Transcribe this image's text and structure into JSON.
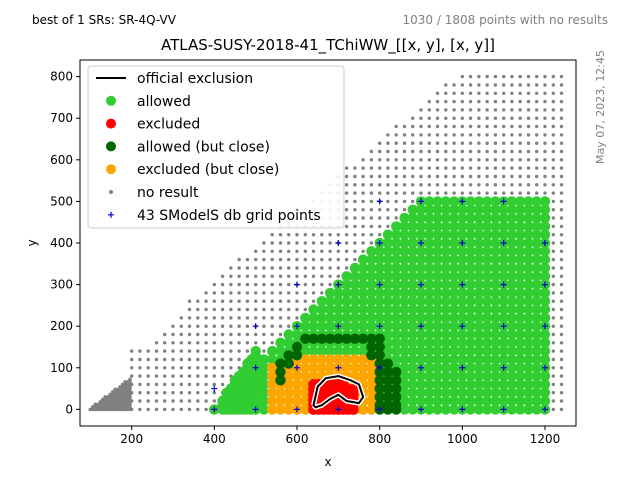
{
  "header": {
    "left_note": "best of 1 SRs: SR-4Q-VV",
    "right_note": "1030 / 1808 points with no results",
    "side_note": "May 07, 2023, 12:45"
  },
  "chart_data": {
    "type": "scatter",
    "title": "ATLAS-SUSY-2018-41_TChiWW_[[x, y], [x, y]]",
    "xlabel": "x",
    "ylabel": "y",
    "xlim": [
      75,
      1275
    ],
    "ylim": [
      -40,
      840
    ],
    "xticks": [
      200,
      400,
      600,
      800,
      1000,
      1200
    ],
    "yticks": [
      0,
      100,
      200,
      300,
      400,
      500,
      600,
      700,
      800
    ],
    "grid": false,
    "legend_position": "top-left",
    "legend": [
      {
        "label": "official exclusion",
        "marker": "line",
        "color": "#000000"
      },
      {
        "label": "allowed",
        "marker": "dot",
        "color": "#32cd32"
      },
      {
        "label": "excluded",
        "marker": "dot",
        "color": "#ff0000"
      },
      {
        "label": "allowed (but close)",
        "marker": "dot",
        "color": "#006400"
      },
      {
        "label": "excluded (but close)",
        "marker": "dot",
        "color": "#ffa500"
      },
      {
        "label": "no result",
        "marker": "small-dot",
        "color": "#808080"
      },
      {
        "label": "43 SModelS db grid points",
        "marker": "plus",
        "color": "#0000cd"
      }
    ],
    "series": [
      {
        "name": "allowed",
        "color": "#32cd32",
        "regions": [
          {
            "x": [
              420,
              1200
            ],
            "y": [
              0,
              500
            ],
            "upper_edge": "y <= x - 400"
          },
          {
            "x": [
              400,
              420
            ],
            "y": [
              0,
              20
            ]
          }
        ]
      },
      {
        "name": "allowed (but close)",
        "color": "#006400",
        "points": [
          [
            600,
            150
          ],
          [
            620,
            170
          ],
          [
            640,
            170
          ],
          [
            660,
            170
          ],
          [
            680,
            170
          ],
          [
            700,
            170
          ],
          [
            720,
            170
          ],
          [
            740,
            170
          ],
          [
            760,
            170
          ],
          [
            780,
            170
          ],
          [
            800,
            170
          ],
          [
            780,
            150
          ],
          [
            800,
            150
          ],
          [
            780,
            130
          ],
          [
            800,
            130
          ],
          [
            580,
            130
          ],
          [
            600,
            130
          ],
          [
            560,
            110
          ],
          [
            580,
            110
          ],
          [
            560,
            90
          ],
          [
            560,
            70
          ],
          [
            800,
            110
          ],
          [
            820,
            110
          ],
          [
            800,
            90
          ],
          [
            820,
            90
          ],
          [
            840,
            90
          ],
          [
            800,
            70
          ],
          [
            820,
            70
          ],
          [
            840,
            70
          ],
          [
            800,
            50
          ],
          [
            820,
            50
          ],
          [
            840,
            50
          ],
          [
            800,
            30
          ],
          [
            820,
            30
          ],
          [
            840,
            30
          ],
          [
            800,
            10
          ],
          [
            820,
            10
          ],
          [
            840,
            10
          ],
          [
            800,
            0
          ],
          [
            820,
            0
          ],
          [
            840,
            0
          ]
        ]
      },
      {
        "name": "excluded (but close)",
        "color": "#ffa500",
        "region": {
          "x": [
            540,
            780
          ],
          "y": [
            0,
            130
          ]
        }
      },
      {
        "name": "excluded",
        "color": "#ff0000",
        "region": {
          "x": [
            640,
            740
          ],
          "y": [
            0,
            70
          ]
        }
      },
      {
        "name": "no result",
        "color": "#808080",
        "regions": [
          {
            "x": [
              100,
              200
            ],
            "y": [
              0,
              140
            ],
            "note": "dense cluster"
          },
          {
            "x": [
              200,
              1240
            ],
            "y": [
              0,
              800
            ],
            "lower_edge": "y > x - 400 beyond results",
            "spacing": 20
          }
        ]
      },
      {
        "name": "43 SModelS db grid points",
        "color": "#0000cd",
        "points": [
          [
            400,
            0
          ],
          [
            500,
            0
          ],
          [
            600,
            0
          ],
          [
            700,
            0
          ],
          [
            800,
            0
          ],
          [
            900,
            0
          ],
          [
            1000,
            0
          ],
          [
            1100,
            0
          ],
          [
            1200,
            0
          ],
          [
            400,
            50
          ],
          [
            500,
            100
          ],
          [
            600,
            100
          ],
          [
            700,
            100
          ],
          [
            800,
            100
          ],
          [
            900,
            100
          ],
          [
            1000,
            100
          ],
          [
            1100,
            100
          ],
          [
            1200,
            100
          ],
          [
            500,
            200
          ],
          [
            600,
            200
          ],
          [
            700,
            200
          ],
          [
            800,
            200
          ],
          [
            900,
            200
          ],
          [
            1000,
            200
          ],
          [
            1100,
            200
          ],
          [
            1200,
            200
          ],
          [
            600,
            300
          ],
          [
            700,
            300
          ],
          [
            800,
            300
          ],
          [
            900,
            300
          ],
          [
            1000,
            300
          ],
          [
            1100,
            300
          ],
          [
            1200,
            300
          ],
          [
            700,
            400
          ],
          [
            800,
            400
          ],
          [
            900,
            400
          ],
          [
            1000,
            400
          ],
          [
            1100,
            400
          ],
          [
            1200,
            400
          ],
          [
            800,
            500
          ],
          [
            900,
            500
          ],
          [
            1000,
            500
          ],
          [
            1100,
            500
          ]
        ]
      }
    ],
    "official_exclusion": {
      "x": [
        640,
        650,
        670,
        700,
        730,
        750,
        760,
        750,
        720,
        700,
        680,
        660,
        645,
        640
      ],
      "y": [
        10,
        55,
        75,
        80,
        70,
        60,
        30,
        15,
        20,
        35,
        25,
        10,
        5,
        10
      ]
    }
  }
}
